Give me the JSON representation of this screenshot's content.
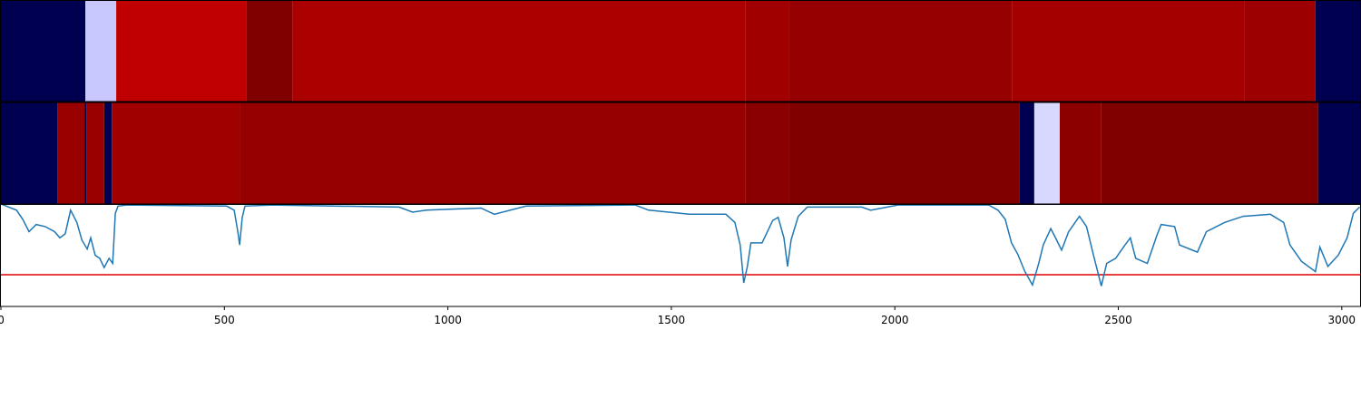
{
  "chart_data": [
    {
      "type": "heatmap",
      "bins": [
        0,
        189,
        258,
        550,
        652,
        1666,
        1764,
        2263,
        2783,
        2941,
        3043
      ],
      "colors": [
        "#000050",
        "#c8c8ff",
        "#c00000",
        "#800000",
        "#aa0000",
        "#a00000",
        "#960000",
        "#a40000",
        "#9c0000",
        "#000050"
      ]
    },
    {
      "type": "heatmap",
      "bins": [
        0,
        126,
        187,
        191,
        231,
        248,
        534,
        1666,
        1764,
        2279,
        2312,
        2369,
        2462,
        2947,
        3043
      ],
      "colors": [
        "#000050",
        "#990000",
        "#000050",
        "#990000",
        "#000050",
        "#a00000",
        "#960000",
        "#8a0000",
        "#800000",
        "#000050",
        "#d8d8ff",
        "#8c0000",
        "#800000",
        "#000050"
      ]
    },
    {
      "type": "line",
      "color": "#1f77b4",
      "x": [
        0,
        35,
        49,
        63,
        79,
        99,
        120,
        132,
        144,
        156,
        170,
        181,
        193,
        201,
        211,
        221,
        231,
        242,
        250,
        256,
        262,
        282,
        505,
        522,
        530,
        534,
        540,
        546,
        607,
        891,
        921,
        952,
        1074,
        1104,
        1175,
        1419,
        1449,
        1540,
        1622,
        1642,
        1654,
        1662,
        1670,
        1678,
        1703,
        1727,
        1739,
        1752,
        1760,
        1768,
        1784,
        1804,
        1926,
        1946,
        2007,
        2210,
        2231,
        2247,
        2261,
        2275,
        2291,
        2308,
        2322,
        2332,
        2349,
        2362,
        2373,
        2389,
        2413,
        2429,
        2444,
        2462,
        2474,
        2494,
        2515,
        2527,
        2539,
        2565,
        2586,
        2596,
        2626,
        2637,
        2677,
        2697,
        2738,
        2779,
        2840,
        2870,
        2884,
        2910,
        2941,
        2951,
        2969,
        2992,
        3012,
        3026,
        3040
      ],
      "values": [
        1.0,
        0.94,
        0.85,
        0.73,
        0.8,
        0.78,
        0.73,
        0.67,
        0.71,
        0.94,
        0.82,
        0.65,
        0.56,
        0.67,
        0.5,
        0.47,
        0.38,
        0.47,
        0.42,
        0.91,
        0.98,
        0.99,
        0.98,
        0.94,
        0.73,
        0.6,
        0.87,
        0.98,
        0.99,
        0.97,
        0.92,
        0.94,
        0.96,
        0.9,
        0.98,
        0.99,
        0.94,
        0.9,
        0.9,
        0.82,
        0.6,
        0.23,
        0.39,
        0.62,
        0.62,
        0.84,
        0.87,
        0.67,
        0.39,
        0.65,
        0.88,
        0.97,
        0.97,
        0.94,
        0.99,
        0.99,
        0.94,
        0.85,
        0.62,
        0.51,
        0.34,
        0.21,
        0.42,
        0.6,
        0.76,
        0.65,
        0.55,
        0.73,
        0.88,
        0.78,
        0.51,
        0.2,
        0.42,
        0.47,
        0.6,
        0.67,
        0.47,
        0.42,
        0.69,
        0.8,
        0.78,
        0.6,
        0.53,
        0.73,
        0.82,
        0.88,
        0.9,
        0.82,
        0.6,
        0.44,
        0.34,
        0.58,
        0.39,
        0.5,
        0.67,
        0.91,
        0.97
      ],
      "ylim": [
        0,
        1
      ],
      "threshold": 0.31,
      "threshold_color": "#e00000",
      "xlim": [
        0,
        3043
      ],
      "xticks": [
        0,
        500,
        1000,
        1500,
        2000,
        2500,
        3000
      ]
    }
  ]
}
